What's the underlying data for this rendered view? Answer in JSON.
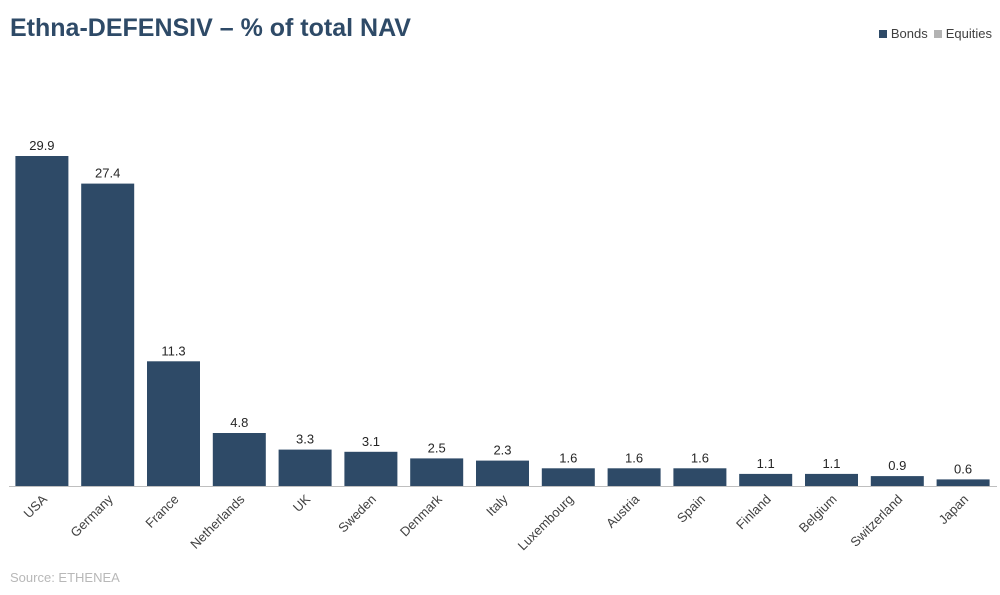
{
  "colors": {
    "bonds": "#2e4a67",
    "equities": "#b3b3b3",
    "axis": "#bfbfbf",
    "title": "#2e4a67"
  },
  "chart_data": {
    "type": "bar",
    "title": "Ethna-DEFENSIV – % of total NAV",
    "source": "Source: ETHENEA",
    "legend": [
      {
        "name": "Bonds",
        "color": "#2e4a67"
      },
      {
        "name": "Equities",
        "color": "#b3b3b3"
      }
    ],
    "legend_position": "top-right",
    "xlabel": "",
    "ylabel": "",
    "ylim": [
      0,
      29.9
    ],
    "grid": false,
    "categories": [
      "USA",
      "Germany",
      "France",
      "Netherlands",
      "UK",
      "Sweden",
      "Denmark",
      "Italy",
      "Luxembourg",
      "Austria",
      "Spain",
      "Finland",
      "Belgium",
      "Switzerland",
      "Japan"
    ],
    "series": [
      {
        "name": "Bonds",
        "values": [
          29.9,
          27.4,
          11.3,
          4.8,
          3.3,
          3.1,
          2.5,
          2.3,
          1.6,
          1.6,
          1.6,
          1.1,
          1.1,
          0.9,
          0.6
        ],
        "labels": [
          "29.9",
          "27.4",
          "11.3",
          "4.8",
          "3.3",
          "3.1",
          "2.5",
          "2.3",
          "1.6",
          "1.6",
          "1.6",
          "1.1",
          "1.1",
          "0.9",
          "0.6"
        ]
      }
    ]
  }
}
